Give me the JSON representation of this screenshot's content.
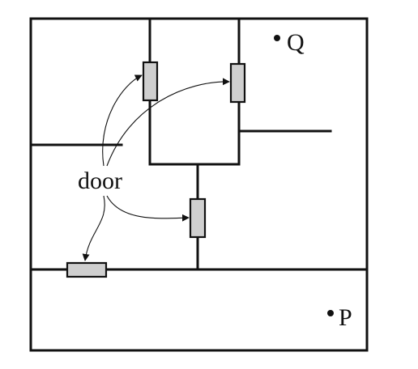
{
  "diagram": {
    "door_label": "door",
    "points": [
      {
        "id": "Q",
        "label": "Q"
      },
      {
        "id": "P",
        "label": "P"
      }
    ],
    "door_count": 4
  },
  "colors": {
    "wall": "#111111",
    "door_fill": "#cfcfcf",
    "background": "#ffffff"
  }
}
